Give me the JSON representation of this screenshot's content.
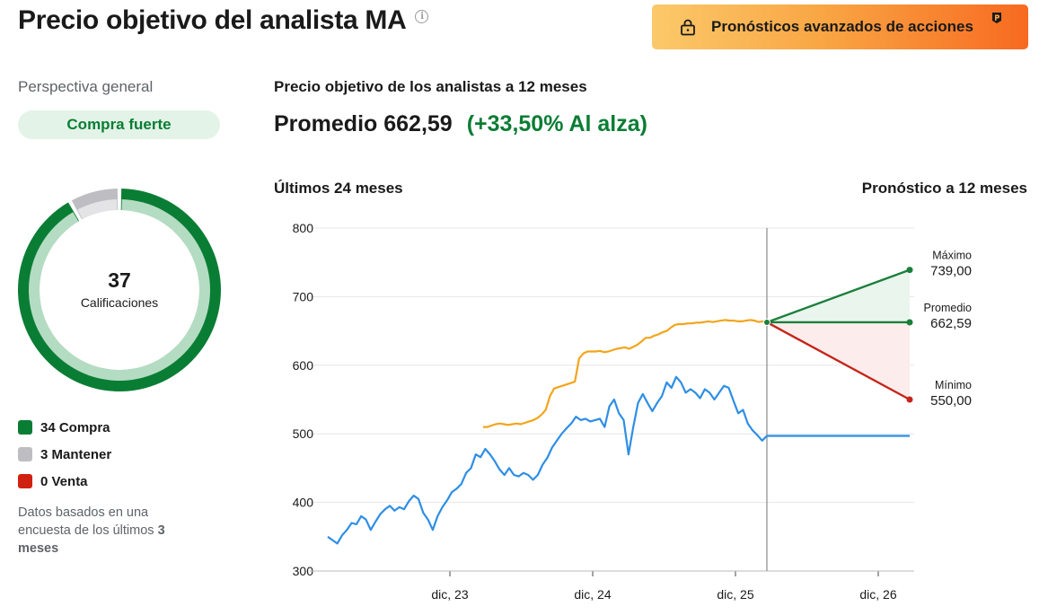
{
  "header": {
    "title": "Precio objetivo del analista MA",
    "info_icon": "info-icon",
    "pro_button_label": "Pronósticos avanzados de acciones",
    "pro_button_icon": "lock-icon",
    "pro_badge_icon": "pro-badge-icon"
  },
  "sidebar": {
    "overview_label": "Perspectiva general",
    "consensus": "Compra fuerte",
    "ratings_count": "37",
    "ratings_label": "Calificaciones",
    "legend": [
      {
        "label": "34 Compra",
        "count": 34,
        "color": "#0a7d34"
      },
      {
        "label": "3 Mantener",
        "count": 3,
        "color": "#bdbdc2"
      },
      {
        "label": "0 Venta",
        "count": 0,
        "color": "#d0200f"
      }
    ],
    "note_prefix": "Datos basados en una encuesta de los últimos",
    "note_bold": "3 meses"
  },
  "main": {
    "heading": "Precio objetivo de los analistas a 12 meses",
    "average_text": "Promedio 662,59",
    "upside_text": "(+33,50% Al alza)",
    "past_label": "Últimos 24 meses",
    "future_label": "Pronóstico a 12 meses"
  },
  "chart_data": {
    "type": "line",
    "y_ticks": [
      300,
      400,
      500,
      600,
      700,
      800
    ],
    "ylim": [
      300,
      800
    ],
    "x_tick_labels": [
      "dic, 23",
      "dic, 24",
      "dic, 25",
      "dic, 26"
    ],
    "colors": {
      "price": "#2e8ee5",
      "target": "#f2a51c",
      "high": "#1b7f3b",
      "average": "#1b7f3b",
      "low": "#c5251a",
      "high_fill": "#eaf5ee",
      "low_fill": "#fcecec",
      "grid": "#e6e6e6",
      "divider": "#8a8a8a"
    },
    "series": [
      {
        "key": "price",
        "values": [
          [
            0,
            350
          ],
          [
            0.5,
            345
          ],
          [
            1,
            340
          ],
          [
            1.5,
            352
          ],
          [
            2,
            360
          ],
          [
            2.5,
            370
          ],
          [
            3,
            368
          ],
          [
            3.5,
            380
          ],
          [
            4,
            375
          ],
          [
            4.5,
            360
          ],
          [
            5,
            372
          ],
          [
            5.5,
            383
          ],
          [
            6,
            390
          ],
          [
            6.5,
            395
          ],
          [
            7,
            388
          ],
          [
            7.5,
            393
          ],
          [
            8,
            390
          ],
          [
            8.5,
            402
          ],
          [
            9,
            410
          ],
          [
            9.5,
            405
          ],
          [
            10,
            385
          ],
          [
            10.5,
            375
          ],
          [
            11,
            360
          ],
          [
            11.5,
            380
          ],
          [
            12,
            393
          ],
          [
            12.5,
            403
          ],
          [
            13,
            415
          ],
          [
            13.5,
            420
          ],
          [
            14,
            427
          ],
          [
            14.5,
            443
          ],
          [
            15,
            450
          ],
          [
            15.5,
            470
          ],
          [
            16,
            466
          ],
          [
            16.5,
            478
          ],
          [
            17,
            470
          ],
          [
            17.5,
            460
          ],
          [
            18,
            448
          ],
          [
            18.5,
            440
          ],
          [
            19,
            450
          ],
          [
            19.5,
            440
          ],
          [
            20,
            438
          ],
          [
            20.5,
            443
          ],
          [
            21,
            440
          ],
          [
            21.5,
            433
          ],
          [
            22,
            440
          ],
          [
            22.5,
            455
          ],
          [
            23,
            465
          ],
          [
            23.5,
            480
          ],
          [
            24,
            490
          ],
          [
            24.5,
            500
          ],
          [
            25,
            508
          ],
          [
            25.5,
            515
          ],
          [
            26,
            525
          ],
          [
            26.5,
            520
          ],
          [
            27,
            522
          ],
          [
            27.5,
            518
          ],
          [
            28,
            520
          ],
          [
            28.5,
            522
          ],
          [
            29,
            510
          ],
          [
            29.5,
            540
          ],
          [
            30,
            550
          ],
          [
            30.5,
            530
          ],
          [
            31,
            520
          ],
          [
            31.5,
            470
          ],
          [
            32,
            510
          ],
          [
            32.5,
            545
          ],
          [
            33,
            558
          ],
          [
            33.5,
            545
          ],
          [
            34,
            533
          ],
          [
            34.5,
            545
          ],
          [
            35,
            555
          ],
          [
            35.5,
            575
          ],
          [
            36,
            567
          ],
          [
            36.5,
            583
          ],
          [
            37,
            575
          ],
          [
            37.5,
            560
          ],
          [
            38,
            565
          ],
          [
            38.5,
            560
          ],
          [
            39,
            552
          ],
          [
            39.5,
            565
          ],
          [
            40,
            560
          ],
          [
            40.5,
            550
          ],
          [
            41,
            560
          ],
          [
            41.5,
            570
          ],
          [
            42,
            567
          ],
          [
            42.5,
            548
          ],
          [
            43,
            530
          ],
          [
            43.5,
            535
          ],
          [
            44,
            515
          ],
          [
            44.5,
            505
          ],
          [
            45,
            498
          ],
          [
            45.5,
            490
          ],
          [
            46,
            497
          ],
          [
            46.5,
            497
          ],
          [
            47,
            497
          ],
          [
            48,
            497
          ],
          [
            50,
            497
          ],
          [
            52,
            497
          ],
          [
            54,
            497
          ],
          [
            56,
            497
          ],
          [
            58,
            497
          ],
          [
            60,
            497
          ],
          [
            62,
            497
          ],
          [
            64,
            497
          ],
          [
            66,
            497
          ],
          [
            68,
            497
          ],
          [
            70,
            497
          ],
          [
            72,
            497
          ],
          [
            74,
            497
          ],
          [
            76,
            497
          ],
          [
            78,
            497
          ],
          [
            80,
            497
          ],
          [
            82,
            497
          ],
          [
            84,
            497
          ],
          [
            86,
            497
          ],
          [
            88,
            497
          ],
          [
            90,
            497
          ],
          [
            92,
            497
          ],
          [
            94,
            497
          ],
          [
            96,
            497
          ],
          [
            98,
            497
          ],
          [
            100,
            497
          ]
        ]
      },
      {
        "key": "target",
        "values": [
          [
            0,
            510
          ],
          [
            0.5,
            510
          ],
          [
            1,
            512
          ],
          [
            1.5,
            514
          ],
          [
            2,
            515
          ],
          [
            2.5,
            514
          ],
          [
            3,
            513
          ],
          [
            3.5,
            514
          ],
          [
            4,
            515
          ],
          [
            4.5,
            514
          ],
          [
            5,
            516
          ],
          [
            5.5,
            518
          ],
          [
            6,
            520
          ],
          [
            6.5,
            523
          ],
          [
            7,
            528
          ],
          [
            7.5,
            535
          ],
          [
            8,
            555
          ],
          [
            8.5,
            566
          ],
          [
            9,
            568
          ],
          [
            9.5,
            570
          ],
          [
            10,
            572
          ],
          [
            10.5,
            574
          ],
          [
            11,
            576
          ],
          [
            11.5,
            610
          ],
          [
            12,
            617
          ],
          [
            12.5,
            620
          ],
          [
            13,
            620
          ],
          [
            13.5,
            620
          ],
          [
            14,
            621
          ],
          [
            14.5,
            619
          ],
          [
            15,
            620
          ],
          [
            15.5,
            622
          ],
          [
            16,
            624
          ],
          [
            16.5,
            625
          ],
          [
            17,
            626
          ],
          [
            17.5,
            624
          ],
          [
            18,
            627
          ],
          [
            18.5,
            630
          ],
          [
            19,
            635
          ],
          [
            19.5,
            640
          ],
          [
            20,
            640
          ],
          [
            20.5,
            643
          ],
          [
            21,
            645
          ],
          [
            21.5,
            648
          ],
          [
            22,
            650
          ],
          [
            22.5,
            655
          ],
          [
            23,
            659
          ],
          [
            23.5,
            660
          ],
          [
            24,
            660
          ],
          [
            24.5,
            661
          ],
          [
            25,
            661
          ],
          [
            25.5,
            662
          ],
          [
            26,
            662
          ],
          [
            26.5,
            663
          ],
          [
            27,
            664
          ],
          [
            27.5,
            663
          ],
          [
            28,
            664
          ],
          [
            28.5,
            665
          ],
          [
            29,
            666
          ],
          [
            29.5,
            665
          ],
          [
            30,
            665
          ],
          [
            30.5,
            664
          ],
          [
            31,
            664
          ],
          [
            31.5,
            665
          ],
          [
            32,
            666
          ],
          [
            32.5,
            665
          ],
          [
            33,
            663
          ],
          [
            33.5,
            664
          ],
          [
            34,
            662.59
          ]
        ]
      }
    ],
    "forecast": {
      "average": 662.59,
      "high": 739.0,
      "low": 550.0,
      "high_label": "Máximo",
      "high_value_text": "739,00",
      "avg_label": "Promedio",
      "avg_value_text": "662,59",
      "low_label": "Mínimo",
      "low_value_text": "550,00"
    },
    "grid": true
  }
}
